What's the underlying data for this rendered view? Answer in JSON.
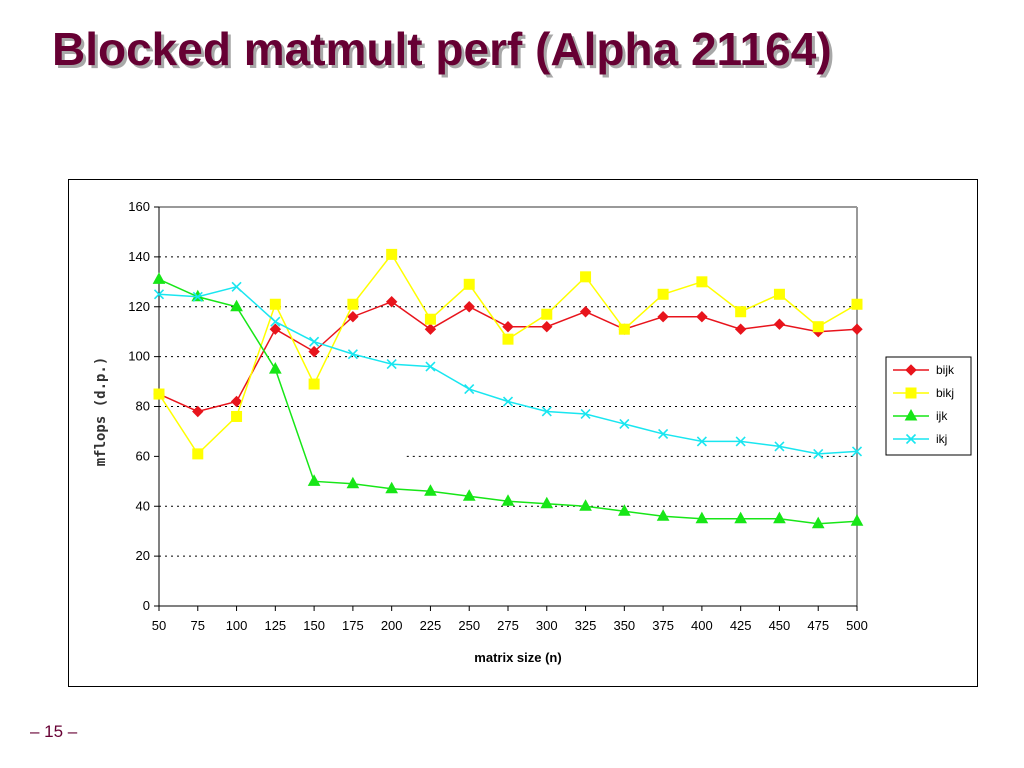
{
  "slide": {
    "title": "Blocked matmult perf (Alpha 21164)",
    "page_number": "– 15 –"
  },
  "colors": {
    "title": "#660033",
    "bijk": "#e8141c",
    "bikj": "#ffff00",
    "ijk": "#17e617",
    "ikj": "#19e6f0"
  },
  "chart_data": {
    "type": "line",
    "title": "",
    "xlabel": "matrix size (n)",
    "ylabel": "mflops (d.p.)",
    "x": [
      50,
      75,
      100,
      125,
      150,
      175,
      200,
      225,
      250,
      275,
      300,
      325,
      350,
      375,
      400,
      425,
      450,
      475,
      500
    ],
    "ylim": [
      0,
      160
    ],
    "yticks": [
      0,
      20,
      40,
      60,
      80,
      100,
      120,
      140,
      160
    ],
    "grid": "horizontal-dotted",
    "legend_position": "right",
    "series": [
      {
        "name": "bijk",
        "marker": "diamond",
        "color": "#e8141c",
        "values": [
          85,
          78,
          82,
          111,
          102,
          116,
          122,
          111,
          120,
          112,
          112,
          118,
          111,
          116,
          116,
          111,
          113,
          110,
          111
        ]
      },
      {
        "name": "bikj",
        "marker": "square",
        "color": "#ffff00",
        "values": [
          85,
          61,
          76,
          121,
          89,
          121,
          141,
          115,
          129,
          107,
          117,
          132,
          111,
          125,
          130,
          118,
          125,
          112,
          121
        ]
      },
      {
        "name": "ijk",
        "marker": "triangle",
        "color": "#17e617",
        "values": [
          131,
          124,
          120,
          95,
          50,
          49,
          47,
          46,
          44,
          42,
          41,
          40,
          38,
          36,
          35,
          35,
          35,
          33,
          34
        ]
      },
      {
        "name": "ikj",
        "marker": "x",
        "color": "#19e6f0",
        "values": [
          125,
          124,
          128,
          114,
          106,
          101,
          97,
          96,
          87,
          82,
          78,
          77,
          73,
          69,
          66,
          66,
          64,
          61,
          62
        ]
      }
    ]
  }
}
